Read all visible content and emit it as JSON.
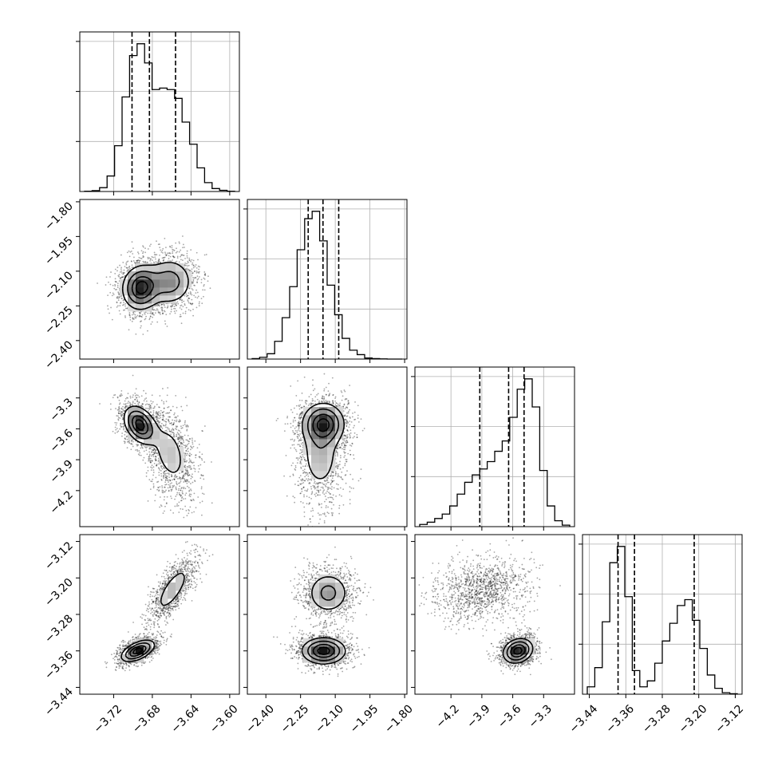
{
  "chart_data": {
    "type": "corner",
    "title": "",
    "params": [
      {
        "xlim": [
          -3.755,
          -3.59
        ],
        "ticks": [
          -3.72,
          -3.68,
          -3.64,
          -3.6
        ],
        "tick_labels": [
          "−3.72",
          "−3.68",
          "−3.64",
          "−3.60"
        ],
        "quantiles": [
          -3.701,
          -3.683,
          -3.656
        ],
        "hist": [
          0.2,
          0.6,
          2.6,
          10.5,
          31,
          64,
          92,
          100,
          87,
          69,
          70,
          69,
          63,
          47,
          32,
          16,
          6,
          2,
          0.8,
          0.2
        ]
      },
      {
        "xlim": [
          -2.48,
          -1.79
        ],
        "ticks": [
          -2.4,
          -2.25,
          -2.1,
          -1.95,
          -1.8
        ],
        "tick_labels": [
          "−2.40",
          "−2.25",
          "−2.10",
          "−1.95",
          "−1.80"
        ],
        "quantiles": [
          -2.217,
          -2.153,
          -2.085
        ],
        "hist": [
          0.3,
          1.2,
          3.6,
          12,
          28,
          49,
          74,
          95,
          100,
          80,
          50,
          30,
          14,
          6,
          3,
          0.7,
          0.3,
          0.1,
          0,
          0
        ]
      },
      {
        "xlim": [
          -4.55,
          -3.0
        ],
        "ticks": [
          -4.2,
          -3.9,
          -3.6,
          -3.3
        ],
        "tick_labels": [
          "−4.2",
          "−3.9",
          "−3.6",
          "−3.3"
        ],
        "quantiles": [
          -3.92,
          -3.64,
          -3.49
        ],
        "hist": [
          1.5,
          3,
          5.5,
          8.5,
          14,
          22,
          30,
          35,
          39,
          44,
          51,
          58,
          74,
          93,
          100,
          81,
          38,
          14,
          4,
          1
        ]
      },
      {
        "xlim": [
          -3.455,
          -3.105
        ],
        "ticks": [
          -3.44,
          -3.36,
          -3.28,
          -3.2,
          -3.12
        ],
        "tick_labels": [
          "−3.44",
          "−3.36",
          "−3.28",
          "−3.20",
          "−3.12"
        ],
        "quantiles": [
          -3.377,
          -3.341,
          -3.21
        ],
        "hist": [
          5,
          18,
          49,
          89,
          100,
          66,
          16,
          5,
          9,
          21,
          36,
          48,
          60,
          64,
          50,
          31,
          13,
          4,
          1,
          0.3
        ]
      }
    ],
    "levels": [
      0.2,
      0.42,
      0.68,
      0.88
    ],
    "pairs": [
      {
        "row": 1,
        "col": 0,
        "components": [
          {
            "w": 0.55,
            "mx": -3.692,
            "my": -2.172,
            "sx": 0.0105,
            "sy": 0.052,
            "rho": 0.05
          },
          {
            "w": 0.45,
            "mx": -3.662,
            "my": -2.145,
            "sx": 0.0135,
            "sy": 0.058,
            "rho": 0.0
          }
        ]
      },
      {
        "row": 2,
        "col": 0,
        "components": [
          {
            "w": 0.55,
            "mx": -3.693,
            "my": -3.56,
            "sx": 0.009,
            "sy": 0.1,
            "rho": -0.35
          },
          {
            "w": 0.45,
            "mx": -3.662,
            "my": -3.84,
            "sx": 0.012,
            "sy": 0.2,
            "rho": -0.35
          }
        ]
      },
      {
        "row": 2,
        "col": 1,
        "components": [
          {
            "w": 0.55,
            "mx": -2.15,
            "my": -3.55,
            "sx": 0.05,
            "sy": 0.11,
            "rho": 0.0
          },
          {
            "w": 0.45,
            "mx": -2.165,
            "my": -3.85,
            "sx": 0.05,
            "sy": 0.22,
            "rho": 0.0
          }
        ]
      },
      {
        "row": 3,
        "col": 0,
        "components": [
          {
            "w": 0.55,
            "mx": -3.695,
            "my": -3.36,
            "sx": 0.0095,
            "sy": 0.013,
            "rho": 0.55
          },
          {
            "w": 0.45,
            "mx": -3.659,
            "my": -3.225,
            "sx": 0.011,
            "sy": 0.032,
            "rho": 0.75
          }
        ]
      },
      {
        "row": 3,
        "col": 1,
        "components": [
          {
            "w": 0.55,
            "mx": -2.15,
            "my": -3.36,
            "sx": 0.052,
            "sy": 0.016,
            "rho": 0.0
          },
          {
            "w": 0.45,
            "mx": -2.13,
            "my": -3.233,
            "sx": 0.052,
            "sy": 0.026,
            "rho": 0.0
          }
        ]
      },
      {
        "row": 3,
        "col": 2,
        "components": [
          {
            "w": 0.55,
            "mx": -3.55,
            "my": -3.36,
            "sx": 0.08,
            "sy": 0.015,
            "rho": 0.2
          },
          {
            "w": 0.45,
            "mx": -3.9,
            "my": -3.225,
            "sx": 0.2,
            "sy": 0.03,
            "rho": 0.2
          }
        ]
      }
    ],
    "grid": true
  }
}
